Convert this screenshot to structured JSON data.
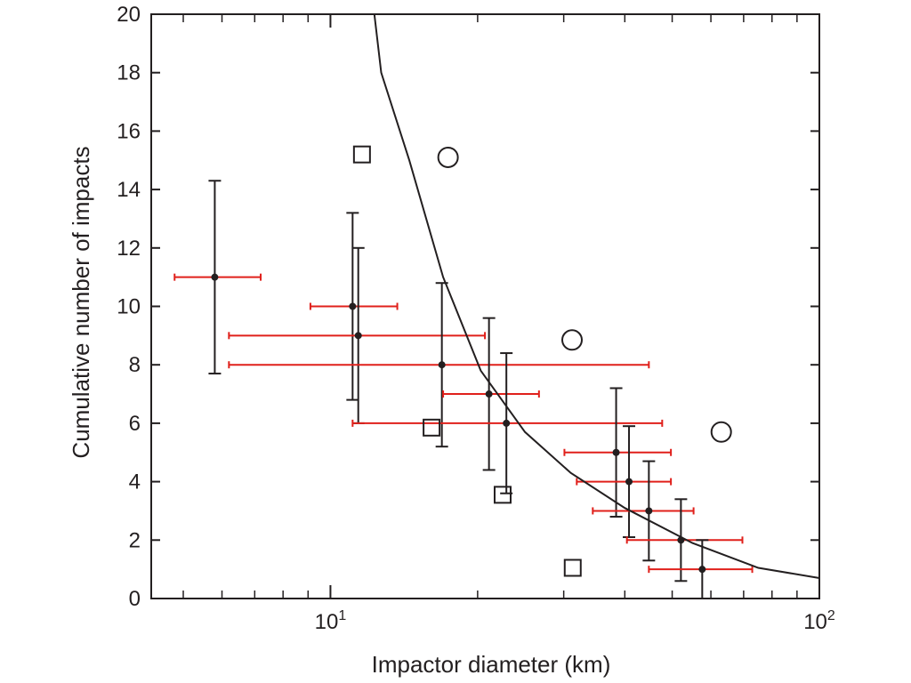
{
  "chart_data": {
    "type": "scatter",
    "title": "",
    "xlabel": "Impactor diameter (km)",
    "ylabel": "Cumulative number of impacts",
    "xscale": "log",
    "xlim": [
      4.3,
      100
    ],
    "ylim": [
      0,
      20
    ],
    "grid": false,
    "legend": "none",
    "x_tick_labels": [
      {
        "value": 10,
        "base": "10",
        "exp": "1"
      },
      {
        "value": 100,
        "base": "10",
        "exp": "2"
      }
    ],
    "x_minor_ticks": [
      5,
      6,
      7,
      8,
      9,
      20,
      30,
      40,
      50,
      60,
      70,
      80,
      90
    ],
    "y_ticks": [
      0,
      2,
      4,
      6,
      8,
      10,
      12,
      14,
      16,
      18,
      20
    ],
    "y_tick_labels": [
      "0",
      "2",
      "4",
      "6",
      "8",
      "10",
      "12",
      "14",
      "16",
      "18",
      "20"
    ],
    "series": [
      {
        "kind": "errorbar",
        "marker": "dot",
        "color": "#231f20",
        "xerr_color": "#e0201b",
        "yerr_color": "#231f20",
        "points": [
          {
            "x": 5.8,
            "y": 11,
            "xmin": 4.8,
            "xmax": 7.2,
            "ymin": 7.7,
            "ymax": 14.3
          },
          {
            "x": 11.1,
            "y": 10,
            "xmin": 9.1,
            "xmax": 13.7,
            "ymin": 6.8,
            "ymax": 13.2
          },
          {
            "x": 11.4,
            "y": 9,
            "xmin": 6.2,
            "xmax": 20.7,
            "ymin": 6.0,
            "ymax": 12.0
          },
          {
            "x": 16.9,
            "y": 8,
            "xmin": 6.2,
            "xmax": 44.8,
            "ymin": 5.2,
            "ymax": 10.8
          },
          {
            "x": 21.1,
            "y": 7,
            "xmin": 17.0,
            "xmax": 26.7,
            "ymin": 4.4,
            "ymax": 9.6
          },
          {
            "x": 22.9,
            "y": 6,
            "xmin": 11.1,
            "xmax": 47.7,
            "ymin": 3.6,
            "ymax": 8.4
          },
          {
            "x": 38.4,
            "y": 5,
            "xmin": 30.1,
            "xmax": 49.7,
            "ymin": 2.8,
            "ymax": 7.2
          },
          {
            "x": 40.8,
            "y": 4,
            "xmin": 31.9,
            "xmax": 49.7,
            "ymin": 2.1,
            "ymax": 5.9
          },
          {
            "x": 44.8,
            "y": 3,
            "xmin": 34.4,
            "xmax": 55.3,
            "ymin": 1.3,
            "ymax": 4.7
          },
          {
            "x": 52.1,
            "y": 2,
            "xmin": 40.4,
            "xmax": 69.6,
            "ymin": 0.6,
            "ymax": 3.4
          },
          {
            "x": 57.6,
            "y": 1,
            "xmin": 44.8,
            "xmax": 72.9,
            "ymin": 0,
            "ymax": 2.0
          }
        ]
      },
      {
        "kind": "markers",
        "marker": "square",
        "color": "#231f20",
        "points": [
          {
            "x": 11.6,
            "y": 15.2
          },
          {
            "x": 16.1,
            "y": 5.85
          },
          {
            "x": 22.5,
            "y": 3.55
          },
          {
            "x": 31.3,
            "y": 1.05
          }
        ]
      },
      {
        "kind": "markers",
        "marker": "circle",
        "color": "#231f20",
        "points": [
          {
            "x": 17.4,
            "y": 15.1
          },
          {
            "x": 31.2,
            "y": 8.85
          },
          {
            "x": 63.0,
            "y": 5.7
          }
        ]
      },
      {
        "kind": "line",
        "color": "#231f20",
        "points": [
          {
            "x": 12.3,
            "y": 20
          },
          {
            "x": 12.7,
            "y": 18
          },
          {
            "x": 14.5,
            "y": 15
          },
          {
            "x": 17.0,
            "y": 11
          },
          {
            "x": 20.3,
            "y": 7.8
          },
          {
            "x": 25.0,
            "y": 5.7
          },
          {
            "x": 31.0,
            "y": 4.3
          },
          {
            "x": 40.0,
            "y": 3.1
          },
          {
            "x": 55.0,
            "y": 1.9
          },
          {
            "x": 75.0,
            "y": 1.05
          },
          {
            "x": 100.0,
            "y": 0.7
          }
        ]
      }
    ]
  }
}
